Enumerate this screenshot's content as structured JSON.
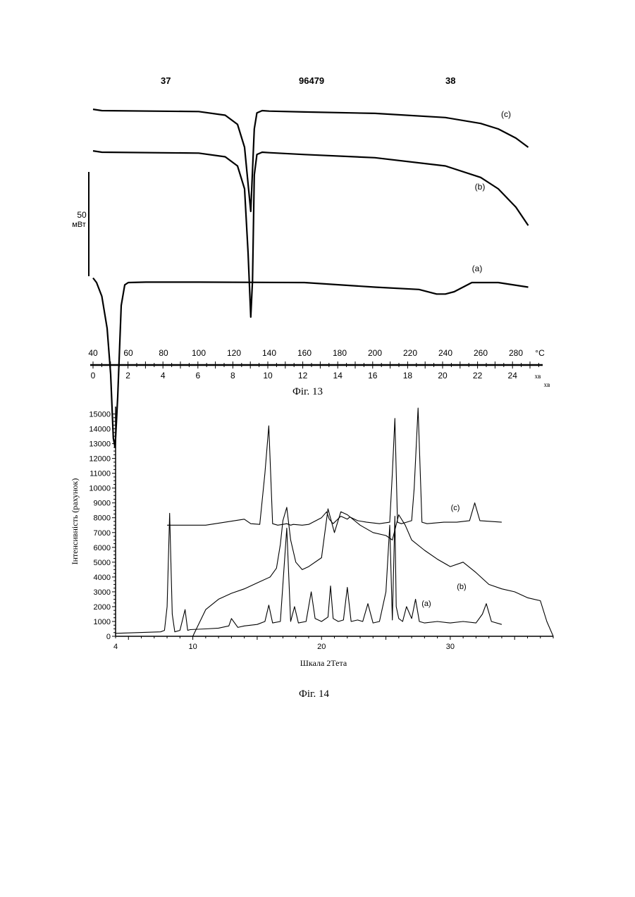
{
  "header": {
    "left_page": "37",
    "center_number": "96479",
    "right_page": "38"
  },
  "figures": {
    "fig13_caption": "Фіг. 13",
    "fig14_caption": "Фіг. 14"
  },
  "colors": {
    "ink": "#000000",
    "paper": "#ffffff"
  },
  "chart_data": [
    {
      "type": "line",
      "id": "dsc",
      "title": "",
      "xlabel": "",
      "ylabel": "",
      "scale_bar": {
        "value": "50",
        "unit": "мВт"
      },
      "x_temperature": {
        "unit": "°C",
        "ticks": [
          40,
          60,
          80,
          100,
          120,
          140,
          160,
          180,
          200,
          220,
          240,
          260,
          280
        ],
        "range": [
          40,
          287
        ]
      },
      "x_time": {
        "unit": "хв",
        "ticks": [
          0,
          2,
          4,
          6,
          8,
          10,
          12,
          14,
          16,
          18,
          20,
          22,
          24
        ],
        "range": [
          0,
          25.8
        ]
      },
      "series": [
        {
          "name": "(c)",
          "x": [
            40,
            45,
            100,
            115,
            122,
            126,
            128,
            129.5,
            130.5,
            131.5,
            133,
            136,
            140,
            160,
            200,
            240,
            260,
            270,
            280,
            287
          ],
          "y": [
            0.3,
            0.0,
            -0.2,
            -1.0,
            -3.0,
            -8.0,
            -16.0,
            -22.0,
            -13.0,
            -4.0,
            -0.5,
            0.0,
            -0.1,
            -0.3,
            -0.6,
            -1.5,
            -2.8,
            -4.0,
            -6.0,
            -8.0
          ]
        },
        {
          "name": "(b)",
          "x": [
            40,
            45,
            100,
            115,
            122,
            126,
            128,
            129.5,
            130.5,
            131.5,
            133,
            136,
            140,
            160,
            200,
            240,
            260,
            270,
            280,
            287
          ],
          "y": [
            0.3,
            0.0,
            -0.2,
            -1.0,
            -3.0,
            -8.0,
            -22.0,
            -36.0,
            -28.0,
            -5.0,
            -0.5,
            0.0,
            -0.1,
            -0.5,
            -1.2,
            -3.0,
            -5.5,
            -8.0,
            -12.0,
            -16.0
          ]
        },
        {
          "name": "(a)",
          "x": [
            40,
            42,
            45,
            48,
            50,
            51.5,
            52.5,
            54,
            56,
            58,
            60,
            70,
            100,
            160,
            200,
            225,
            235,
            240,
            245,
            250,
            255,
            270,
            287
          ],
          "y": [
            1.0,
            0.0,
            -3.0,
            -10.0,
            -20.0,
            -34.0,
            -36.0,
            -25.0,
            -5.0,
            -0.5,
            0.0,
            0.1,
            0.1,
            0.0,
            -1.0,
            -1.5,
            -2.5,
            -2.5,
            -2.0,
            -1.0,
            0.0,
            0.0,
            -1.0
          ]
        }
      ]
    },
    {
      "type": "line",
      "id": "xrd",
      "title": "",
      "xlabel": "Шкала 2Тета",
      "ylabel": "Інтенсивність (рахунок)",
      "xlim": [
        4,
        38
      ],
      "ylim": [
        0,
        15500
      ],
      "x_ticks": [
        4,
        10,
        20,
        30
      ],
      "y_ticks": [
        0,
        1000,
        2000,
        3000,
        4000,
        5000,
        6000,
        7000,
        8000,
        9000,
        10000,
        11000,
        12000,
        13000,
        14000,
        15000
      ],
      "series": [
        {
          "name": "(c)",
          "x": [
            8.0,
            11.0,
            14.0,
            14.5,
            15.2,
            15.6,
            15.9,
            16.2,
            16.6,
            17.0,
            17.3,
            17.6,
            17.8,
            18.5,
            19.0,
            20.0,
            20.4,
            20.6,
            20.9,
            21.5,
            22.0,
            22.2,
            22.8,
            23.5,
            24.5,
            25.3,
            25.5,
            25.7,
            25.9,
            26.2,
            26.6,
            27.0,
            27.2,
            27.5,
            27.8,
            28.2,
            29.5,
            30.5,
            31.5,
            31.9,
            32.3,
            34.0
          ],
          "y": [
            7500,
            7500,
            7900,
            7600,
            7550,
            11000,
            14200,
            7600,
            7500,
            7550,
            7600,
            7500,
            7550,
            7500,
            7550,
            8000,
            8400,
            7900,
            7600,
            8100,
            7900,
            8050,
            7800,
            7700,
            7600,
            7700,
            11000,
            14700,
            7700,
            7600,
            7700,
            7800,
            10000,
            15400,
            7700,
            7600,
            7700,
            7700,
            7800,
            9000,
            7800,
            7700
          ]
        },
        {
          "name": "(b)",
          "x": [
            10.0,
            11.0,
            12.0,
            13.0,
            14.0,
            15.0,
            16.0,
            16.5,
            16.8,
            17.0,
            17.3,
            17.6,
            18.0,
            18.5,
            19.0,
            20.0,
            20.5,
            21.0,
            21.5,
            22.0,
            23.0,
            24.0,
            25.0,
            25.5,
            26.0,
            26.5,
            27.0,
            28.0,
            29.0,
            30.0,
            31.0,
            32.0,
            33.0,
            34.0,
            35.0,
            36.0,
            37.0,
            37.5,
            38.0
          ],
          "y": [
            0,
            1800,
            2500,
            2900,
            3200,
            3600,
            4000,
            4600,
            6200,
            7800,
            8700,
            6500,
            5000,
            4500,
            4700,
            5300,
            8600,
            7000,
            8400,
            8200,
            7500,
            7000,
            6800,
            6500,
            8200,
            7500,
            6500,
            5800,
            5200,
            4700,
            5000,
            4300,
            3500,
            3200,
            3000,
            2600,
            2400,
            1000,
            0
          ]
        },
        {
          "name": "(a)",
          "x": [
            4.0,
            7.5,
            7.8,
            8.0,
            8.2,
            8.4,
            8.6,
            9.0,
            9.4,
            9.6,
            9.8,
            11.0,
            12.0,
            12.8,
            13.0,
            13.5,
            14.0,
            15.0,
            15.6,
            15.9,
            16.2,
            16.8,
            17.0,
            17.3,
            17.6,
            17.9,
            18.2,
            18.8,
            19.2,
            19.5,
            20.0,
            20.5,
            20.7,
            20.9,
            21.3,
            21.7,
            22.0,
            22.3,
            22.8,
            23.2,
            23.6,
            24.0,
            24.5,
            25.0,
            25.3,
            25.5,
            25.7,
            25.8,
            26.0,
            26.3,
            26.6,
            27.0,
            27.3,
            27.6,
            28.0,
            29.0,
            30.0,
            31.0,
            32.0,
            32.5,
            32.8,
            33.2,
            34.0
          ],
          "y": [
            200,
            300,
            400,
            2000,
            8300,
            1500,
            300,
            400,
            1800,
            400,
            450,
            500,
            550,
            700,
            1200,
            600,
            700,
            800,
            1000,
            2100,
            900,
            1000,
            3500,
            7300,
            1000,
            2000,
            900,
            1000,
            3000,
            1200,
            1000,
            1300,
            3400,
            1200,
            1000,
            1100,
            3300,
            1000,
            1100,
            1000,
            2200,
            900,
            1000,
            3000,
            7500,
            1100,
            8100,
            2000,
            1200,
            1000,
            2000,
            1200,
            2500,
            1000,
            900,
            1000,
            900,
            1000,
            900,
            1500,
            2200,
            1000,
            800
          ]
        }
      ]
    }
  ]
}
